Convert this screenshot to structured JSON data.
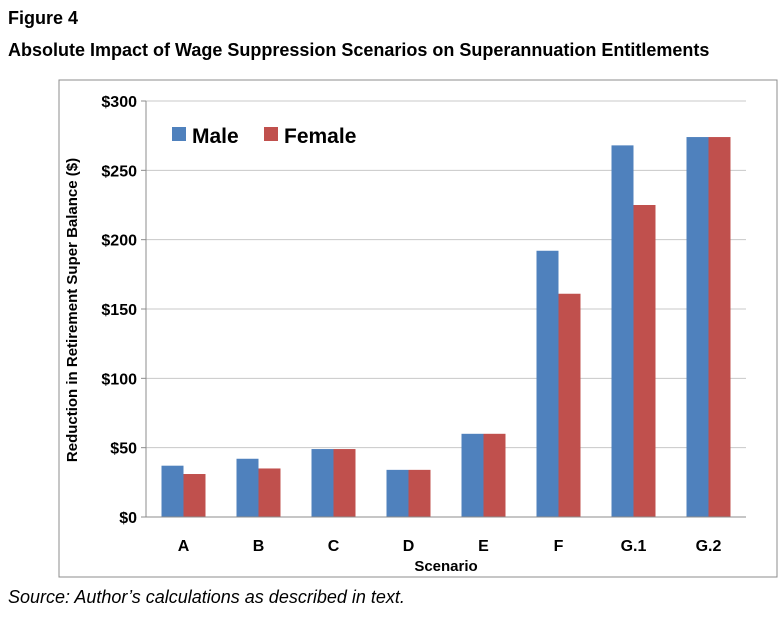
{
  "figure": {
    "label": "Figure 4",
    "title": "Absolute Impact of Wage Suppression Scenarios on Superannuation Entitlements",
    "source": "Source: Author’s calculations as described in text."
  },
  "chart_data": {
    "type": "bar",
    "categories": [
      "A",
      "B",
      "C",
      "D",
      "E",
      "F",
      "G.1",
      "G.2"
    ],
    "series": [
      {
        "name": "Male",
        "color": "#4F81BD",
        "values": [
          37,
          42,
          49,
          34,
          60,
          192,
          268,
          274
        ]
      },
      {
        "name": "Female",
        "color": "#C0504D",
        "values": [
          31,
          35,
          49,
          34,
          60,
          161,
          225,
          274
        ]
      }
    ],
    "title": "",
    "xlabel": "Scenario",
    "ylabel": "Reduction in Retirement Super Balance ($)",
    "ylim": [
      0,
      300
    ],
    "yticks": [
      {
        "value": 0,
        "label": "$0"
      },
      {
        "value": 50,
        "label": "$50"
      },
      {
        "value": 100,
        "label": "$100"
      },
      {
        "value": 150,
        "label": "$150"
      },
      {
        "value": 200,
        "label": "$200"
      },
      {
        "value": 250,
        "label": "$250"
      },
      {
        "value": 300,
        "label": "$300"
      }
    ],
    "grid": true,
    "legend_position": "top-left"
  }
}
